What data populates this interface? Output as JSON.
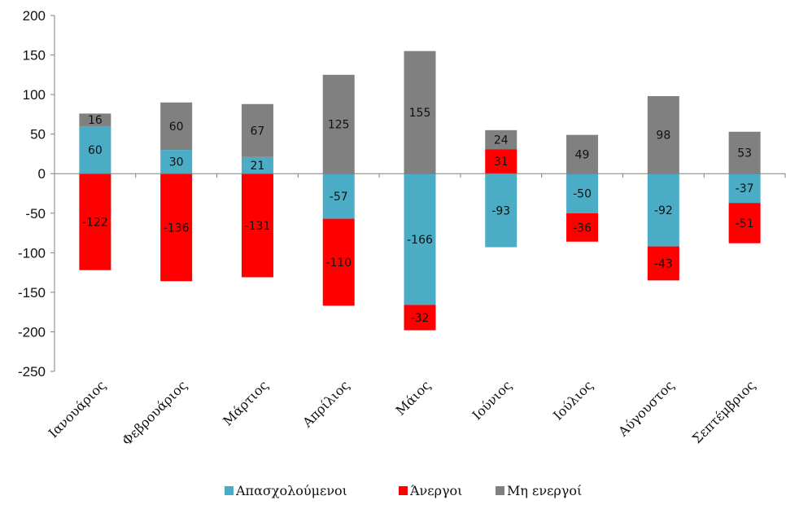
{
  "chart_data": {
    "type": "bar",
    "stacked": true,
    "categories": [
      "Ιανουάριος",
      "Φεβρουάριος",
      "Μάρτιος",
      "Απρίλιος",
      "Μάιος",
      "Ιούνιος",
      "Ιούλιος",
      "Αύγουστος",
      "Σεπτέμβριος"
    ],
    "series": [
      {
        "name": "Απασχολούμενοι",
        "color": "#4bacc6",
        "values": [
          60,
          30,
          21,
          -57,
          -166,
          -93,
          -50,
          -92,
          -37
        ]
      },
      {
        "name": "Άνεργοι",
        "color": "#ff0000",
        "values": [
          -122,
          -136,
          -131,
          -110,
          -32,
          31,
          -36,
          -43,
          -51
        ]
      },
      {
        "name": "Μη ενεργοί",
        "color": "#808080",
        "values": [
          16,
          60,
          67,
          125,
          155,
          24,
          49,
          98,
          53
        ]
      }
    ],
    "ylim": [
      -250,
      200
    ],
    "yticks": [
      200,
      150,
      100,
      50,
      0,
      -50,
      -100,
      -150,
      -200,
      -250
    ],
    "title": "",
    "xlabel": "",
    "ylabel": "",
    "grid": false,
    "legend_position": "bottom"
  }
}
